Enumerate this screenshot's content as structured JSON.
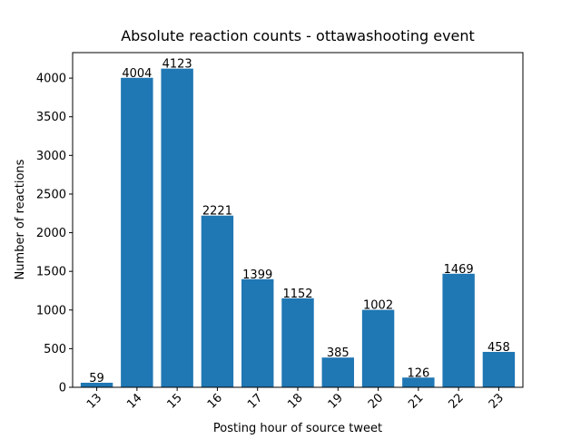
{
  "chart_data": {
    "type": "bar",
    "title": "Absolute reaction counts - ottawashooting event",
    "xlabel": "Posting hour of source tweet",
    "ylabel": "Number of reactions",
    "categories": [
      "13",
      "14",
      "15",
      "16",
      "17",
      "18",
      "19",
      "20",
      "21",
      "22",
      "23"
    ],
    "values": [
      59,
      4004,
      4123,
      2221,
      1399,
      1152,
      385,
      1002,
      126,
      1469,
      458
    ],
    "ylim": [
      0,
      4330
    ],
    "yticks": [
      0,
      500,
      1000,
      1500,
      2000,
      2500,
      3000,
      3500,
      4000
    ],
    "bar_color": "#1f77b4",
    "grid": false,
    "legend": "none",
    "x_tick_rotation_deg": 45
  }
}
